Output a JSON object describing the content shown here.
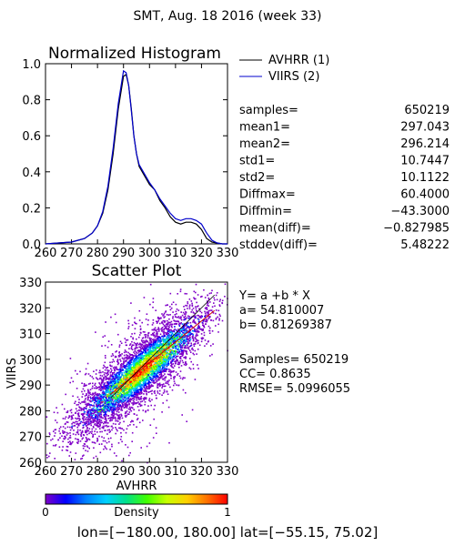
{
  "page": {
    "title": "SMT,  Aug. 18 2016 (week 33)",
    "footer": "lon=[−180.00, 180.00] lat=[−55.15, 75.02]"
  },
  "chart_data": [
    {
      "type": "line",
      "title": "Normalized Histogram",
      "x_ticks": [
        "260",
        "270",
        "280",
        "290",
        "300",
        "310",
        "320",
        "330"
      ],
      "y_ticks": [
        "0.0",
        "0.2",
        "0.4",
        "0.6",
        "0.8",
        "1.0"
      ],
      "xlim": [
        260,
        330
      ],
      "ylim": [
        0,
        1
      ],
      "series": [
        {
          "name": "AVHRR (1)",
          "color": "#000000",
          "x": [
            260,
            265,
            270,
            275,
            278,
            280,
            282,
            284,
            286,
            288,
            290,
            291,
            292,
            293,
            294,
            295,
            296,
            298,
            300,
            302,
            304,
            306,
            308,
            310,
            312,
            314,
            316,
            318,
            320,
            322,
            324,
            326,
            328,
            330
          ],
          "y": [
            0.0,
            0.005,
            0.01,
            0.03,
            0.06,
            0.1,
            0.17,
            0.3,
            0.5,
            0.75,
            0.93,
            0.94,
            0.88,
            0.75,
            0.6,
            0.5,
            0.43,
            0.38,
            0.33,
            0.3,
            0.24,
            0.2,
            0.15,
            0.12,
            0.11,
            0.12,
            0.12,
            0.11,
            0.08,
            0.03,
            0.01,
            0.005,
            0.0,
            0.0
          ]
        },
        {
          "name": "VIIRS (2)",
          "color": "#0000cc",
          "x": [
            260,
            265,
            270,
            275,
            278,
            280,
            282,
            284,
            286,
            288,
            290,
            291,
            292,
            293,
            294,
            295,
            296,
            298,
            300,
            302,
            304,
            306,
            308,
            310,
            312,
            314,
            316,
            318,
            320,
            322,
            324,
            326,
            328,
            330
          ],
          "y": [
            0.0,
            0.005,
            0.01,
            0.03,
            0.06,
            0.1,
            0.18,
            0.32,
            0.53,
            0.78,
            0.96,
            0.95,
            0.88,
            0.74,
            0.6,
            0.5,
            0.44,
            0.39,
            0.34,
            0.3,
            0.25,
            0.21,
            0.17,
            0.14,
            0.13,
            0.14,
            0.14,
            0.13,
            0.11,
            0.06,
            0.02,
            0.005,
            0.0,
            0.0
          ]
        }
      ],
      "color_black": "#000000",
      "color_blue": "#0000cc"
    },
    {
      "type": "scatter",
      "title": "Scatter Plot",
      "xlabel": "AVHRR",
      "ylabel": "VIIRS",
      "x_ticks": [
        "260",
        "270",
        "280",
        "290",
        "300",
        "310",
        "320",
        "330"
      ],
      "y_ticks": [
        "260",
        "270",
        "280",
        "290",
        "300",
        "310",
        "320",
        "330"
      ],
      "xlim": [
        260,
        330
      ],
      "ylim": [
        260,
        330
      ],
      "fit_line": {
        "a": 54.810007,
        "b": 0.81269387,
        "x_range": [
          285,
          325
        ],
        "color": "#cc0000"
      },
      "one_to_one_line": {
        "x_range": [
          285,
          325
        ],
        "color": "#000000"
      },
      "colorbar": {
        "label": "Density",
        "min_label": "0",
        "max_label": "1",
        "colors": [
          "#ffffff",
          "#7f00c8",
          "#0000ff",
          "#0080ff",
          "#00d0ff",
          "#00e08a",
          "#40ff00",
          "#c8ff00",
          "#ffd000",
          "#ff7000",
          "#ff0000"
        ]
      }
    }
  ],
  "stats": {
    "rows": [
      {
        "label": "samples=",
        "value": "650219"
      },
      {
        "label": "mean1=",
        "value": "297.043"
      },
      {
        "label": "mean2=",
        "value": "296.214"
      },
      {
        "label": "std1=",
        "value": "10.7447"
      },
      {
        "label": "std2=",
        "value": "10.1122"
      },
      {
        "label": "Diffmax=",
        "value": "60.4000"
      },
      {
        "label": "Diffmin=",
        "value": "−43.3000"
      },
      {
        "label": "mean(diff)=",
        "value": "−0.827985"
      },
      {
        "label": "stddev(diff)=",
        "value": "5.48222"
      }
    ]
  },
  "regression": {
    "lines": [
      "Y= a +b * X",
      "a= 54.810007",
      "b= 0.81269387",
      "Samples= 650219",
      "CC=  0.8635",
      "RMSE= 5.0996055"
    ]
  }
}
